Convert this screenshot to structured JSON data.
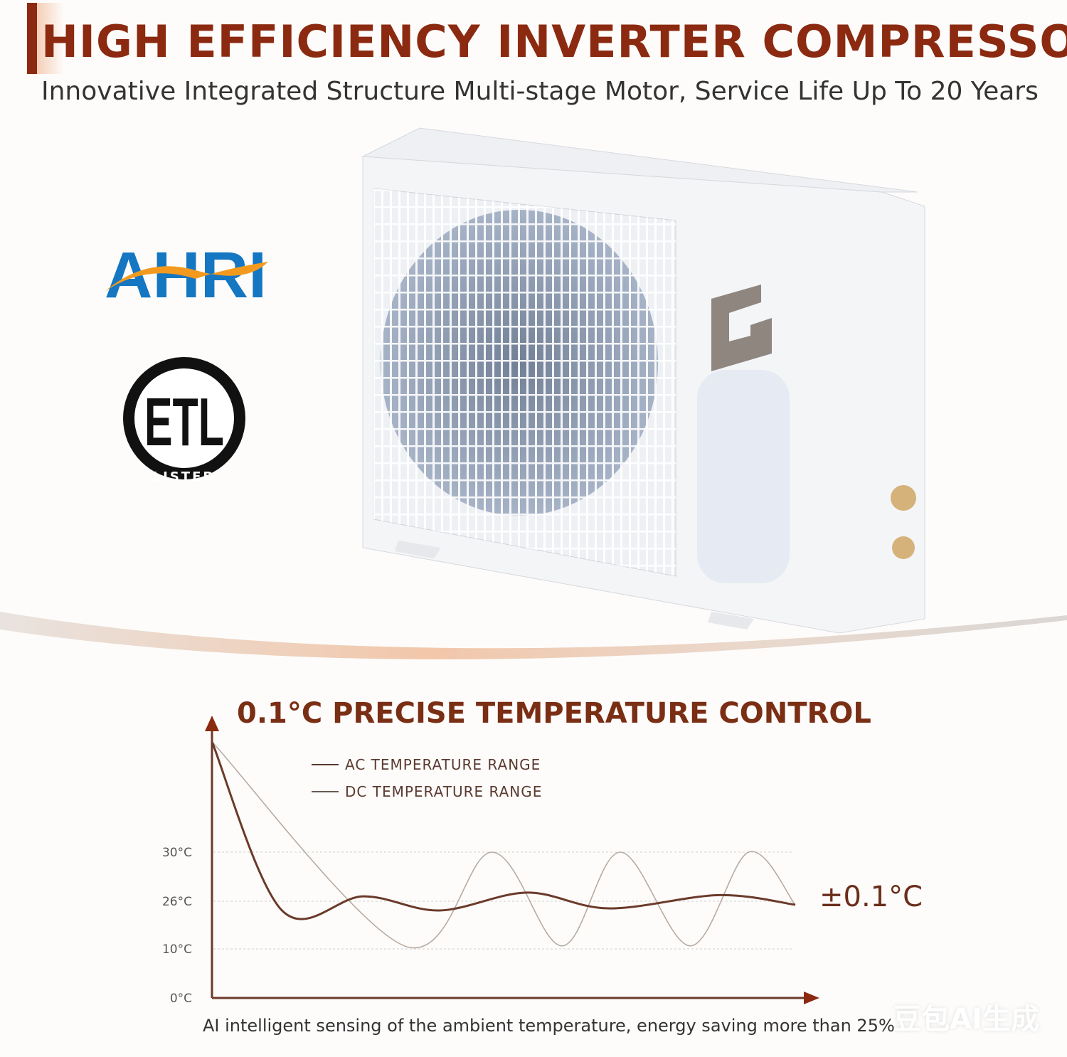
{
  "header": {
    "title": "HIGH EFFICIENCY INVERTER COMPRESSOR",
    "subtitle": "Innovative Integrated Structure Multi-stage Motor, Service Life Up To 20 Years"
  },
  "badges": {
    "ahri": "AHRI",
    "etl": "ETL",
    "etl_listed": "LISTED"
  },
  "product": {
    "logo_letter": "G"
  },
  "colors": {
    "accent": "#8b2a10",
    "ac_line": "#6b3a2a",
    "dc_line": "#b8aaa0",
    "ahri_blue": "#1576c2",
    "ahri_orange": "#f39a1e"
  },
  "chart_data": {
    "type": "line",
    "title": "0.1°C PRECISE TEMPERATURE CONTROL",
    "ylabel": "",
    "xlabel": "",
    "yticks": [
      "0°C",
      "10°C",
      "26°C",
      "30°C"
    ],
    "ytick_values": [
      0,
      10,
      26,
      30
    ],
    "grid": true,
    "legend_placement": "top",
    "series": [
      {
        "name": "AC TEMPERATURE RANGE",
        "color": "#6b3a2a",
        "points": [
          [
            0,
            39
          ],
          [
            12,
            22.9
          ],
          [
            26,
            26.4
          ],
          [
            39,
            22.9
          ],
          [
            54,
            26.7
          ],
          [
            68,
            23.6
          ],
          [
            87,
            26.5
          ],
          [
            100,
            24.8
          ]
        ]
      },
      {
        "name": "DC TEMPERATURE RANGE",
        "color": "#b8aaa0",
        "points": [
          [
            0,
            39
          ],
          [
            33,
            11
          ],
          [
            48,
            30
          ],
          [
            60,
            11
          ],
          [
            70,
            30
          ],
          [
            82,
            11
          ],
          [
            92,
            30
          ],
          [
            100,
            24.8
          ]
        ]
      }
    ],
    "annotation": "±0.1°C"
  },
  "caption": "AI intelligent sensing of the ambient temperature, energy saving more than 25%",
  "watermark": "豆包AI生成"
}
